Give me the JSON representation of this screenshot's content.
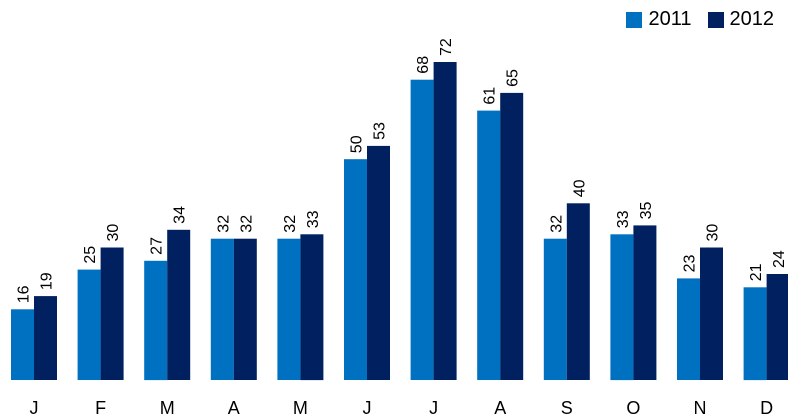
{
  "chart_data": {
    "type": "bar",
    "categories": [
      "J",
      "F",
      "M",
      "A",
      "M",
      "J",
      "J",
      "A",
      "S",
      "O",
      "N",
      "D"
    ],
    "series": [
      {
        "name": "2011",
        "color": "#0070C0",
        "values": [
          16,
          25,
          27,
          32,
          32,
          50,
          68,
          61,
          32,
          33,
          23,
          21
        ]
      },
      {
        "name": "2012",
        "color": "#002060",
        "values": [
          19,
          30,
          34,
          32,
          33,
          53,
          72,
          65,
          40,
          35,
          30,
          24
        ]
      }
    ],
    "title": "",
    "xlabel": "",
    "ylabel": "",
    "ylim": [
      0,
      80
    ],
    "grid": false,
    "legend_position": "top-right",
    "data_labels": "rotated-vertical"
  }
}
